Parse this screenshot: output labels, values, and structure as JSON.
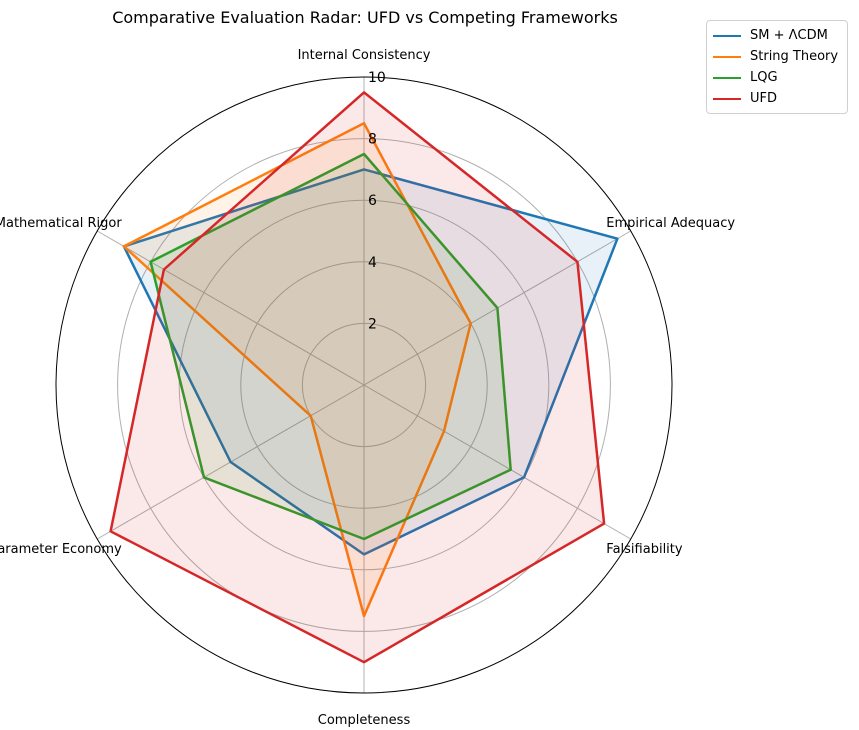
{
  "chart_data": {
    "type": "radar",
    "title": "Comparative Evaluation Radar: UFD vs Competing Frameworks",
    "axes": [
      "Internal Consistency",
      "Empirical Adequacy",
      "Falsifiability",
      "Completeness",
      "Parameter Economy",
      "Mathematical Rigor"
    ],
    "rlim": [
      0,
      10
    ],
    "rticks": [
      "2",
      "4",
      "6",
      "8",
      "10"
    ],
    "rtick_values": [
      2,
      4,
      6,
      8,
      10
    ],
    "grid": true,
    "legend_position": "top-right",
    "series": [
      {
        "name": "SM + ΛCDM",
        "color": "#1f77b4",
        "values": [
          7,
          9.5,
          6,
          5.5,
          5,
          9
        ]
      },
      {
        "name": "String Theory",
        "color": "#ff7f0e",
        "values": [
          8.5,
          4,
          3,
          7.5,
          2,
          9
        ]
      },
      {
        "name": "LQG",
        "color": "#2ca02c",
        "values": [
          7.5,
          5,
          5.5,
          5,
          6,
          8
        ]
      },
      {
        "name": "UFD",
        "color": "#d62728",
        "values": [
          9.5,
          8,
          9,
          9,
          9.5,
          7.5
        ]
      }
    ]
  }
}
